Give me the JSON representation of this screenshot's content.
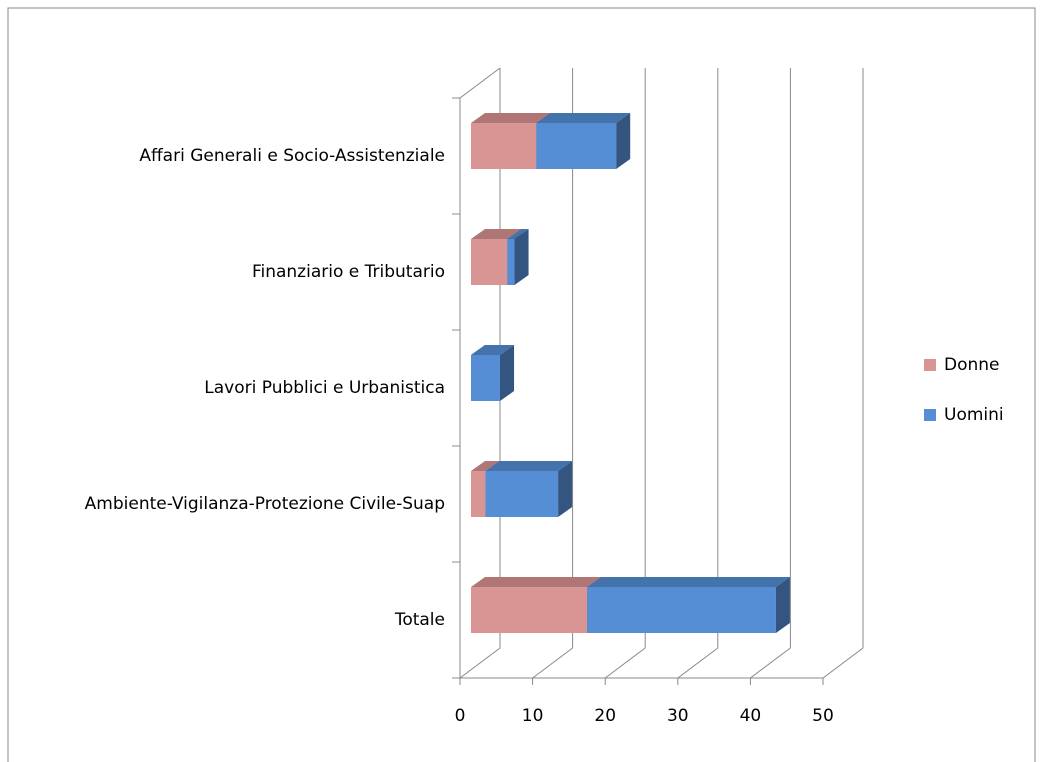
{
  "chart_data": {
    "type": "bar3d-stacked-horizontal",
    "categories": [
      "Affari Generali e Socio-Assistenziale",
      "Finanziario e Tributario",
      "Lavori Pubblici e Urbanistica",
      "Ambiente-Vigilanza-Protezione Civile-Suap",
      "Totale"
    ],
    "series": [
      {
        "name": "Donne",
        "color": "#d99594",
        "values": [
          9,
          5,
          0,
          2,
          16
        ]
      },
      {
        "name": "Uomini",
        "color": "#558ed5",
        "values": [
          11,
          1,
          4,
          10,
          26
        ]
      }
    ],
    "xlim": [
      0,
      50
    ],
    "xticks": [
      0,
      10,
      20,
      30,
      40,
      50
    ],
    "grid": true,
    "legend": "right"
  }
}
